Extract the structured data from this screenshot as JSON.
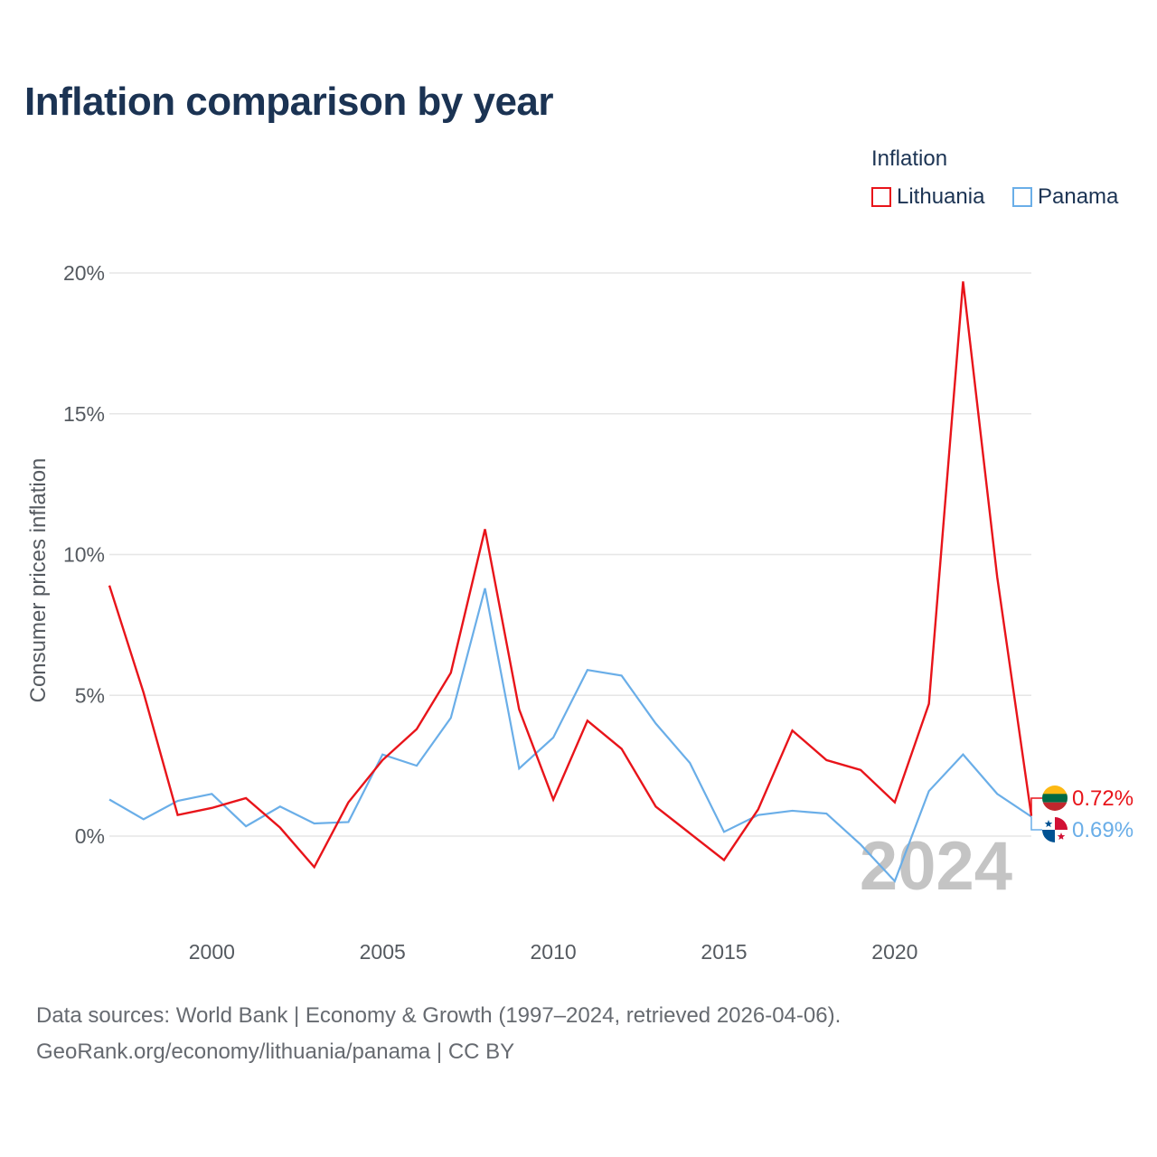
{
  "chart_data": {
    "type": "line",
    "title": "Inflation comparison by year",
    "legend_title": "Inflation",
    "ylabel": "Consumer prices inflation",
    "xlabel": "",
    "year_watermark": "2024",
    "ylim": [
      -2.8,
      20
    ],
    "xlim": [
      1997,
      2024
    ],
    "y_ticks": [
      0,
      5,
      10,
      15,
      20
    ],
    "y_tick_labels": [
      "0%",
      "5%",
      "10%",
      "15%",
      "20%"
    ],
    "x_ticks": [
      2000,
      2005,
      2010,
      2015,
      2020
    ],
    "x_tick_labels": [
      "2000",
      "2005",
      "2010",
      "2015",
      "2020"
    ],
    "x": [
      1997,
      1998,
      1999,
      2000,
      2001,
      2002,
      2003,
      2004,
      2005,
      2006,
      2007,
      2008,
      2009,
      2010,
      2011,
      2012,
      2013,
      2014,
      2015,
      2016,
      2017,
      2018,
      2019,
      2020,
      2021,
      2022,
      2023,
      2024
    ],
    "series": [
      {
        "name": "Lithuania",
        "color": "#e8141a",
        "flag": "lithuania-flag-icon",
        "end_label": "0.72%",
        "values": [
          8.9,
          5.1,
          0.75,
          1.0,
          1.35,
          0.3,
          -1.1,
          1.2,
          2.7,
          3.8,
          5.8,
          10.9,
          4.5,
          1.3,
          4.1,
          3.1,
          1.05,
          0.1,
          -0.85,
          0.95,
          3.75,
          2.7,
          2.35,
          1.2,
          4.7,
          19.7,
          9.2,
          0.72
        ]
      },
      {
        "name": "Panama",
        "color": "#6aaee8",
        "flag": "panama-flag-icon",
        "end_label": "0.69%",
        "values": [
          1.3,
          0.6,
          1.25,
          1.5,
          0.35,
          1.05,
          0.45,
          0.5,
          2.9,
          2.5,
          4.2,
          8.8,
          2.4,
          3.5,
          5.9,
          5.7,
          4.0,
          2.6,
          0.15,
          0.75,
          0.9,
          0.8,
          -0.3,
          -1.6,
          1.6,
          2.9,
          1.5,
          0.69
        ]
      }
    ]
  },
  "footer": {
    "line1": "Data sources: World Bank | Economy & Growth (1997–2024, retrieved 2026-04-06).",
    "line2": "GeoRank.org/economy/lithuania/panama | CC BY"
  }
}
